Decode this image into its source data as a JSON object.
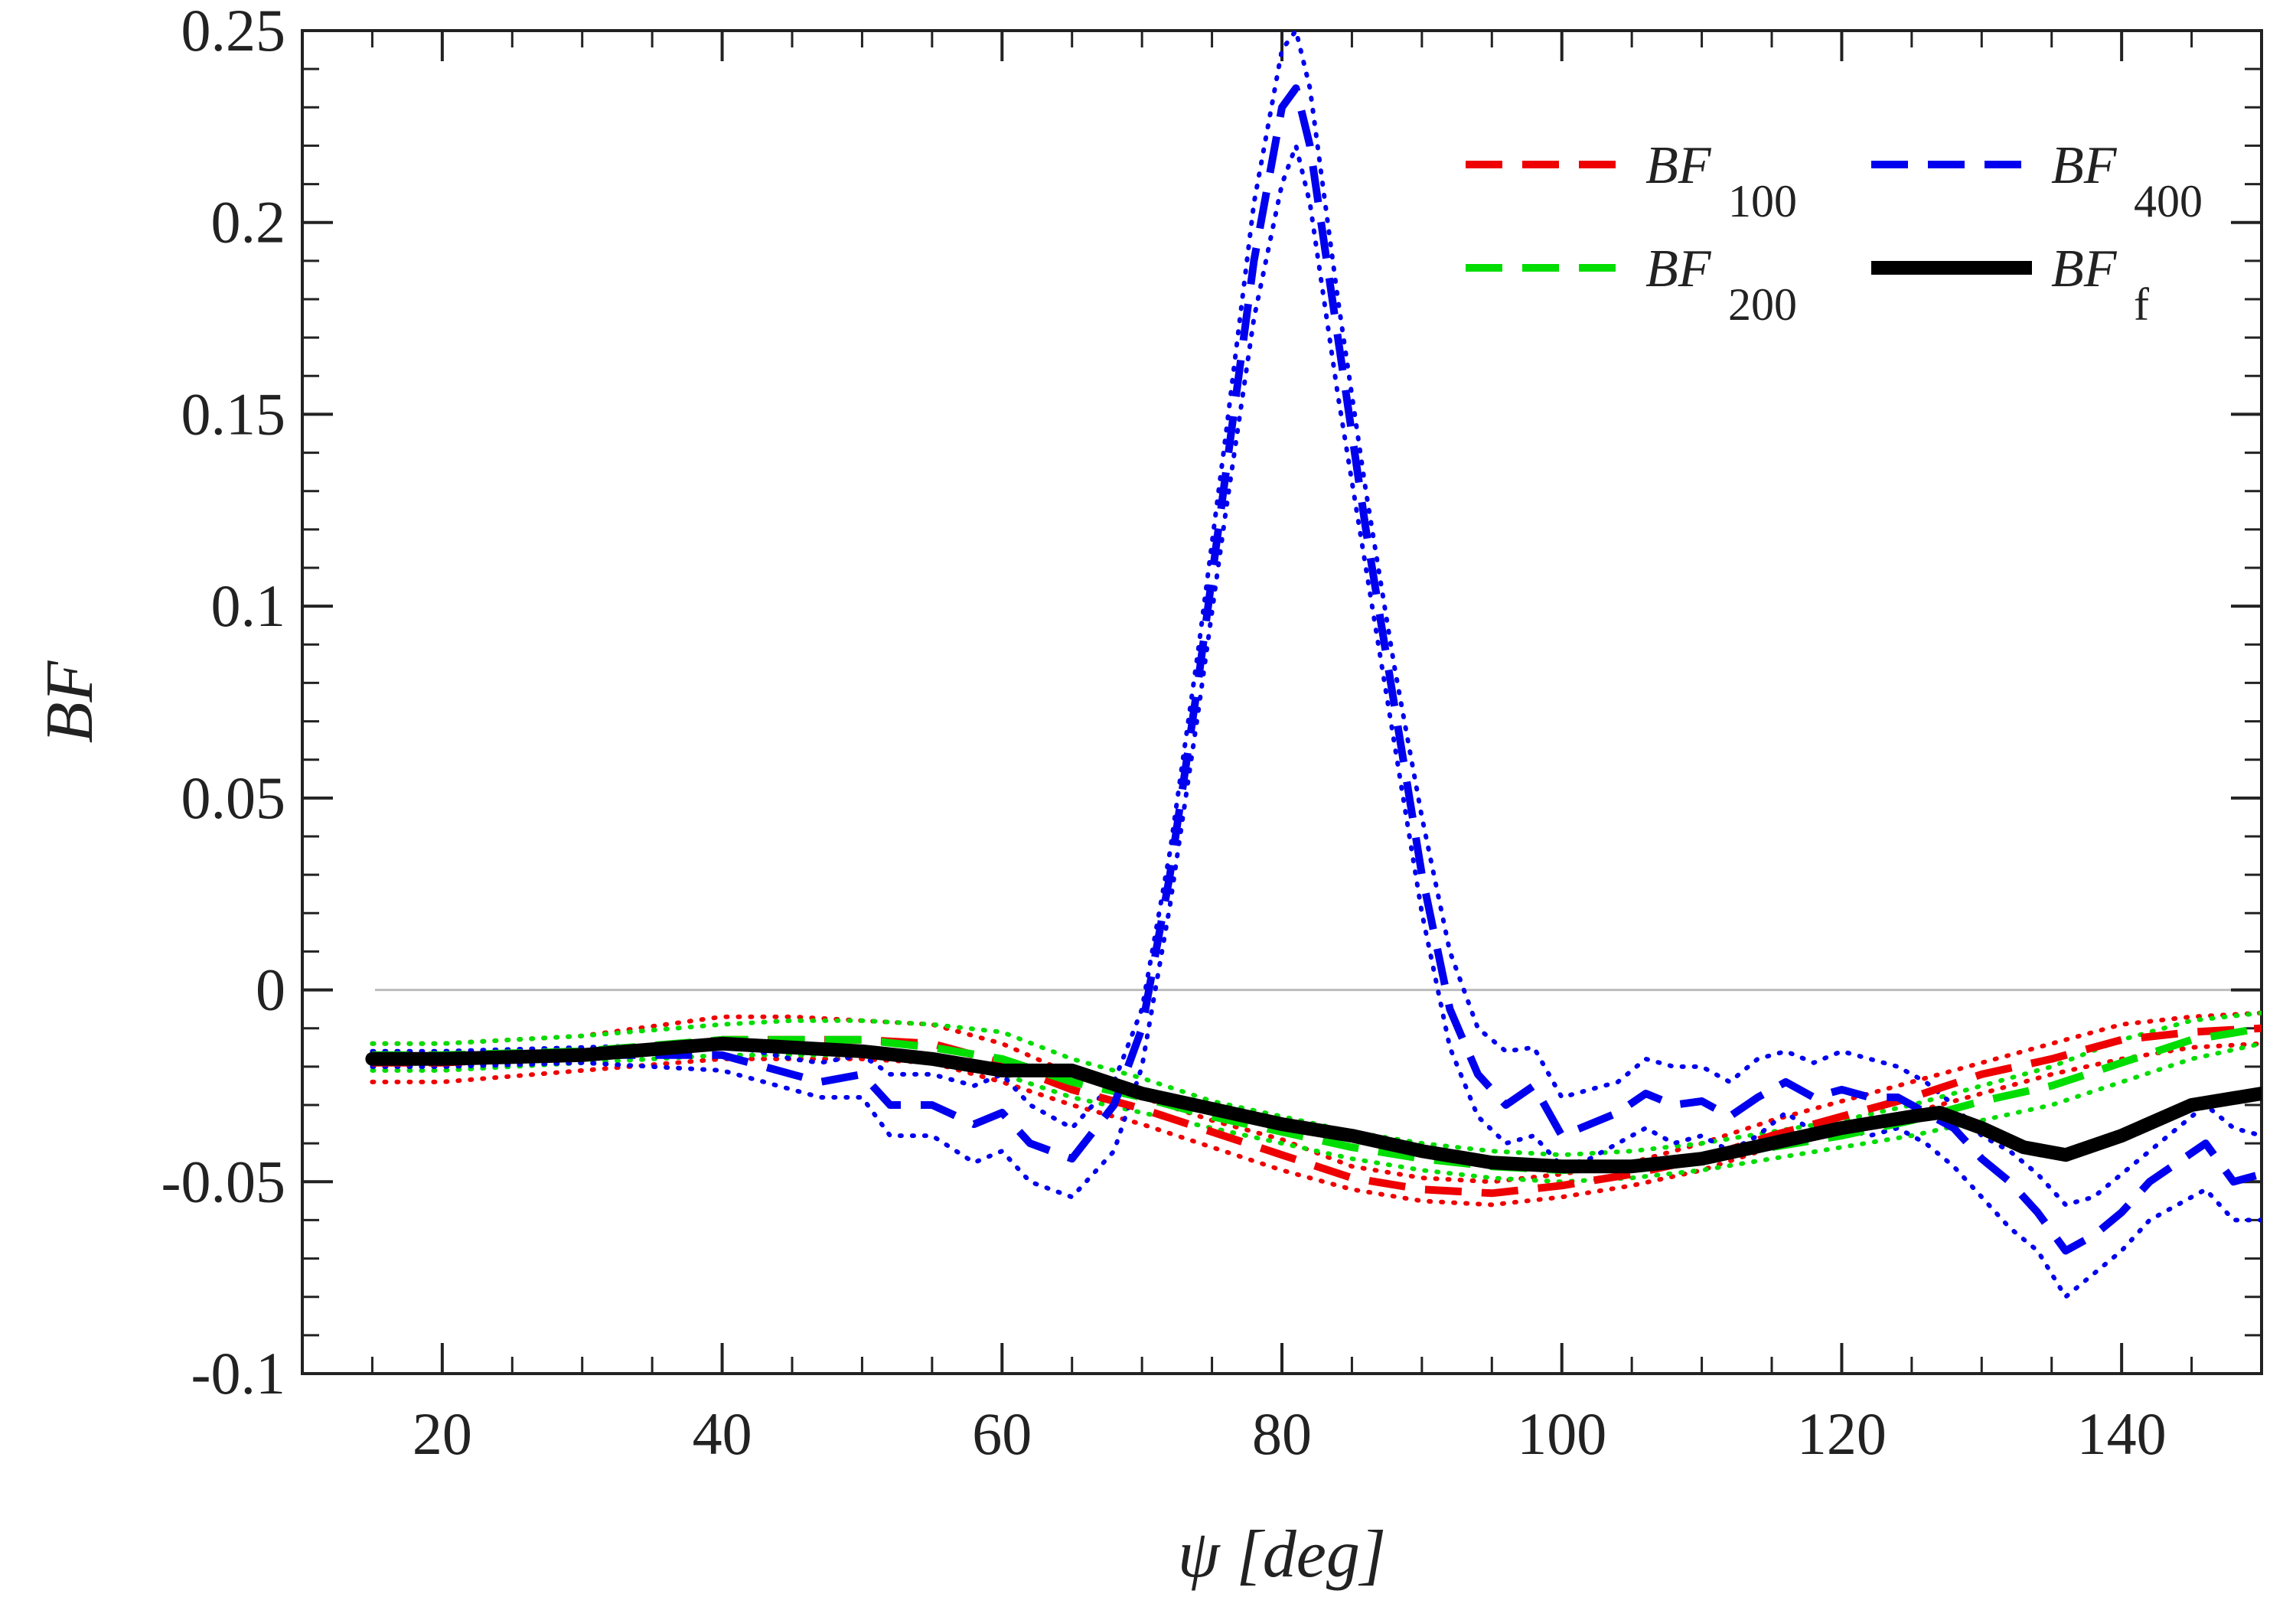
{
  "chart_data": {
    "type": "line",
    "xlabel": "ψ [deg]",
    "ylabel": "BF",
    "xlim": [
      10,
      150
    ],
    "ylim": [
      -0.1,
      0.25
    ],
    "x_ticks": [
      20,
      40,
      60,
      80,
      100,
      120,
      140
    ],
    "x_tick_labels": [
      "20",
      "40",
      "60",
      "80",
      "100",
      "120",
      "140"
    ],
    "y_ticks": [
      -0.1,
      -0.05,
      0,
      0.05,
      0.1,
      0.15,
      0.2,
      0.25
    ],
    "y_tick_labels": [
      "-0.1",
      "-0.05",
      "0",
      "0.05",
      "0.1",
      "0.15",
      "0.2",
      "0.25"
    ],
    "zero_line": true,
    "legend_position": "top-right",
    "colors": {
      "bf100": "#ee0000",
      "bf200": "#00dd00",
      "bf400": "#0000ee",
      "bff": "#000000",
      "zero": "#bbbbbb",
      "axis": "#222222"
    },
    "series": [
      {
        "key": "bf100",
        "name": "BF",
        "subscript": "100",
        "style": "dashed",
        "x": [
          15,
          20,
          30,
          40,
          45,
          50,
          55,
          60,
          65,
          70,
          75,
          80,
          85,
          90,
          95,
          100,
          105,
          110,
          115,
          120,
          125,
          130,
          135,
          140,
          145,
          150
        ],
        "y": [
          -0.019,
          -0.019,
          -0.017,
          -0.013,
          -0.013,
          -0.013,
          -0.014,
          -0.019,
          -0.026,
          -0.031,
          -0.037,
          -0.043,
          -0.049,
          -0.052,
          -0.053,
          -0.051,
          -0.048,
          -0.044,
          -0.038,
          -0.033,
          -0.028,
          -0.022,
          -0.018,
          -0.013,
          -0.011,
          -0.01
        ],
        "band_upper": [
          -0.014,
          -0.014,
          -0.012,
          -0.007,
          -0.007,
          -0.008,
          -0.009,
          -0.014,
          -0.022,
          -0.028,
          -0.034,
          -0.039,
          -0.046,
          -0.049,
          -0.05,
          -0.048,
          -0.045,
          -0.04,
          -0.034,
          -0.029,
          -0.024,
          -0.019,
          -0.014,
          -0.009,
          -0.007,
          -0.006
        ],
        "band_lower": [
          -0.024,
          -0.024,
          -0.021,
          -0.018,
          -0.018,
          -0.018,
          -0.019,
          -0.024,
          -0.03,
          -0.035,
          -0.041,
          -0.047,
          -0.052,
          -0.055,
          -0.056,
          -0.054,
          -0.051,
          -0.047,
          -0.041,
          -0.036,
          -0.032,
          -0.027,
          -0.022,
          -0.018,
          -0.015,
          -0.014
        ]
      },
      {
        "key": "bf200",
        "name": "BF",
        "subscript": "200",
        "style": "dashed",
        "x": [
          15,
          20,
          30,
          40,
          45,
          50,
          55,
          60,
          65,
          70,
          75,
          80,
          85,
          90,
          95,
          100,
          105,
          110,
          115,
          120,
          125,
          130,
          135,
          140,
          145,
          150
        ],
        "y": [
          -0.017,
          -0.017,
          -0.016,
          -0.013,
          -0.013,
          -0.013,
          -0.015,
          -0.018,
          -0.024,
          -0.028,
          -0.033,
          -0.037,
          -0.041,
          -0.044,
          -0.046,
          -0.047,
          -0.046,
          -0.044,
          -0.041,
          -0.038,
          -0.034,
          -0.029,
          -0.025,
          -0.019,
          -0.013,
          -0.01
        ],
        "band_upper": [
          -0.014,
          -0.014,
          -0.012,
          -0.009,
          -0.008,
          -0.008,
          -0.009,
          -0.011,
          -0.018,
          -0.023,
          -0.029,
          -0.033,
          -0.037,
          -0.04,
          -0.042,
          -0.043,
          -0.042,
          -0.04,
          -0.037,
          -0.034,
          -0.03,
          -0.025,
          -0.02,
          -0.013,
          -0.008,
          -0.006
        ],
        "band_lower": [
          -0.021,
          -0.021,
          -0.019,
          -0.017,
          -0.017,
          -0.017,
          -0.019,
          -0.022,
          -0.028,
          -0.032,
          -0.036,
          -0.04,
          -0.044,
          -0.047,
          -0.049,
          -0.05,
          -0.049,
          -0.047,
          -0.044,
          -0.041,
          -0.038,
          -0.034,
          -0.03,
          -0.024,
          -0.018,
          -0.014
        ]
      },
      {
        "key": "bf400",
        "name": "BF",
        "subscript": "400",
        "style": "dashed",
        "x": [
          15,
          20,
          30,
          40,
          45,
          47,
          50,
          52,
          55,
          58,
          60,
          62,
          65,
          68,
          70,
          72,
          74,
          76,
          78,
          80,
          81,
          82,
          84,
          86,
          88,
          90,
          92,
          94,
          96,
          98,
          100,
          102,
          104,
          106,
          108,
          110,
          112,
          114,
          116,
          118,
          120,
          122,
          124,
          126,
          128,
          130,
          132,
          134,
          136,
          138,
          140,
          142,
          144,
          146,
          148,
          150
        ],
        "y": [
          -0.018,
          -0.018,
          -0.017,
          -0.017,
          -0.022,
          -0.024,
          -0.022,
          -0.03,
          -0.03,
          -0.035,
          -0.032,
          -0.04,
          -0.044,
          -0.03,
          -0.01,
          0.03,
          0.08,
          0.135,
          0.19,
          0.23,
          0.235,
          0.22,
          0.17,
          0.12,
          0.075,
          0.03,
          -0.005,
          -0.022,
          -0.03,
          -0.025,
          -0.038,
          -0.035,
          -0.032,
          -0.027,
          -0.03,
          -0.029,
          -0.033,
          -0.028,
          -0.024,
          -0.028,
          -0.026,
          -0.028,
          -0.028,
          -0.032,
          -0.036,
          -0.044,
          -0.05,
          -0.058,
          -0.068,
          -0.064,
          -0.058,
          -0.05,
          -0.045,
          -0.04,
          -0.05,
          -0.048
        ],
        "band_upper": [
          -0.016,
          -0.016,
          -0.015,
          -0.014,
          -0.018,
          -0.019,
          -0.017,
          -0.022,
          -0.022,
          -0.025,
          -0.022,
          -0.03,
          -0.036,
          -0.024,
          -0.005,
          0.036,
          0.088,
          0.145,
          0.205,
          0.245,
          0.25,
          0.235,
          0.18,
          0.13,
          0.085,
          0.045,
          0.01,
          -0.01,
          -0.016,
          -0.015,
          -0.028,
          -0.026,
          -0.024,
          -0.018,
          -0.02,
          -0.02,
          -0.024,
          -0.018,
          -0.016,
          -0.019,
          -0.016,
          -0.018,
          -0.02,
          -0.024,
          -0.03,
          -0.038,
          -0.042,
          -0.048,
          -0.056,
          -0.054,
          -0.048,
          -0.042,
          -0.036,
          -0.03,
          -0.036,
          -0.038
        ],
        "band_lower": [
          -0.02,
          -0.02,
          -0.019,
          -0.021,
          -0.026,
          -0.028,
          -0.028,
          -0.038,
          -0.038,
          -0.045,
          -0.042,
          -0.05,
          -0.054,
          -0.042,
          -0.02,
          0.022,
          0.072,
          0.125,
          0.175,
          0.21,
          0.22,
          0.205,
          0.155,
          0.11,
          0.065,
          0.02,
          -0.015,
          -0.033,
          -0.04,
          -0.038,
          -0.046,
          -0.044,
          -0.04,
          -0.036,
          -0.04,
          -0.038,
          -0.042,
          -0.038,
          -0.032,
          -0.037,
          -0.036,
          -0.038,
          -0.036,
          -0.04,
          -0.046,
          -0.054,
          -0.062,
          -0.068,
          -0.08,
          -0.074,
          -0.068,
          -0.06,
          -0.056,
          -0.052,
          -0.06,
          -0.06
        ]
      },
      {
        "key": "bff",
        "name": "BF",
        "subscript": "f",
        "style": "solid",
        "x": [
          15,
          20,
          30,
          40,
          50,
          55,
          60,
          65,
          70,
          75,
          80,
          85,
          90,
          95,
          100,
          105,
          110,
          115,
          120,
          125,
          127,
          130,
          133,
          136,
          140,
          145,
          150
        ],
        "y": [
          -0.018,
          -0.018,
          -0.017,
          -0.014,
          -0.016,
          -0.018,
          -0.021,
          -0.021,
          -0.027,
          -0.031,
          -0.035,
          -0.038,
          -0.042,
          -0.045,
          -0.046,
          -0.046,
          -0.044,
          -0.04,
          -0.036,
          -0.033,
          -0.032,
          -0.036,
          -0.041,
          -0.043,
          -0.038,
          -0.03,
          -0.027
        ]
      }
    ]
  }
}
